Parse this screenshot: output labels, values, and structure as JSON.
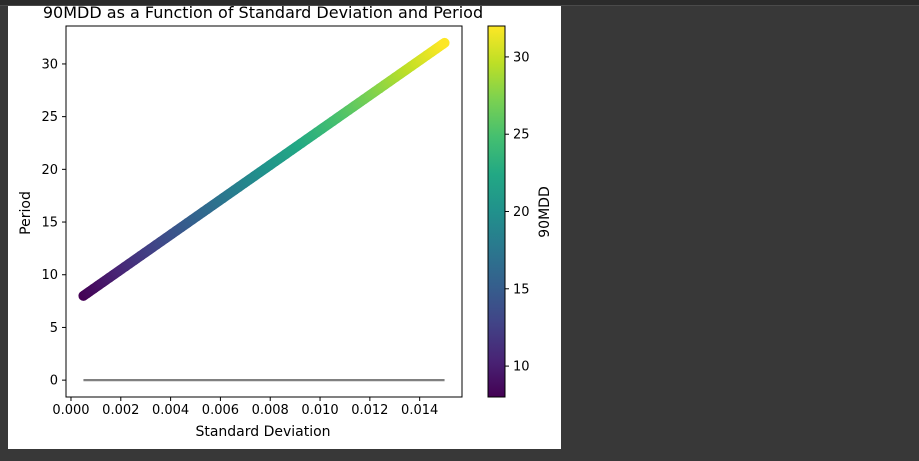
{
  "chart_data": {
    "type": "scatter",
    "title": "90MDD as a Function of Standard Deviation and Period",
    "xlabel": "Standard Deviation",
    "ylabel": "Period",
    "xlim": [
      -0.0002,
      0.0157
    ],
    "ylim": [
      -1.6,
      33.6
    ],
    "xticks": [
      "0.000",
      "0.002",
      "0.004",
      "0.006",
      "0.008",
      "0.010",
      "0.012",
      "0.014"
    ],
    "yticks": [
      "0",
      "5",
      "10",
      "15",
      "20",
      "25",
      "30"
    ],
    "series": [
      {
        "marker": "circle",
        "x_start": 0.0005,
        "x_end": 0.015,
        "y_start": 8,
        "y_end": 32,
        "color_by": "y",
        "colormap": "viridis"
      },
      {
        "marker": "line",
        "x": [
          0.0005,
          0.015
        ],
        "y": [
          0,
          0
        ],
        "color": "#808080"
      }
    ],
    "colorbar": {
      "label": "90MDD",
      "range": [
        8,
        32
      ],
      "ticks": [
        "10",
        "15",
        "20",
        "25",
        "30"
      ],
      "colormap": "viridis"
    },
    "grid": false
  }
}
